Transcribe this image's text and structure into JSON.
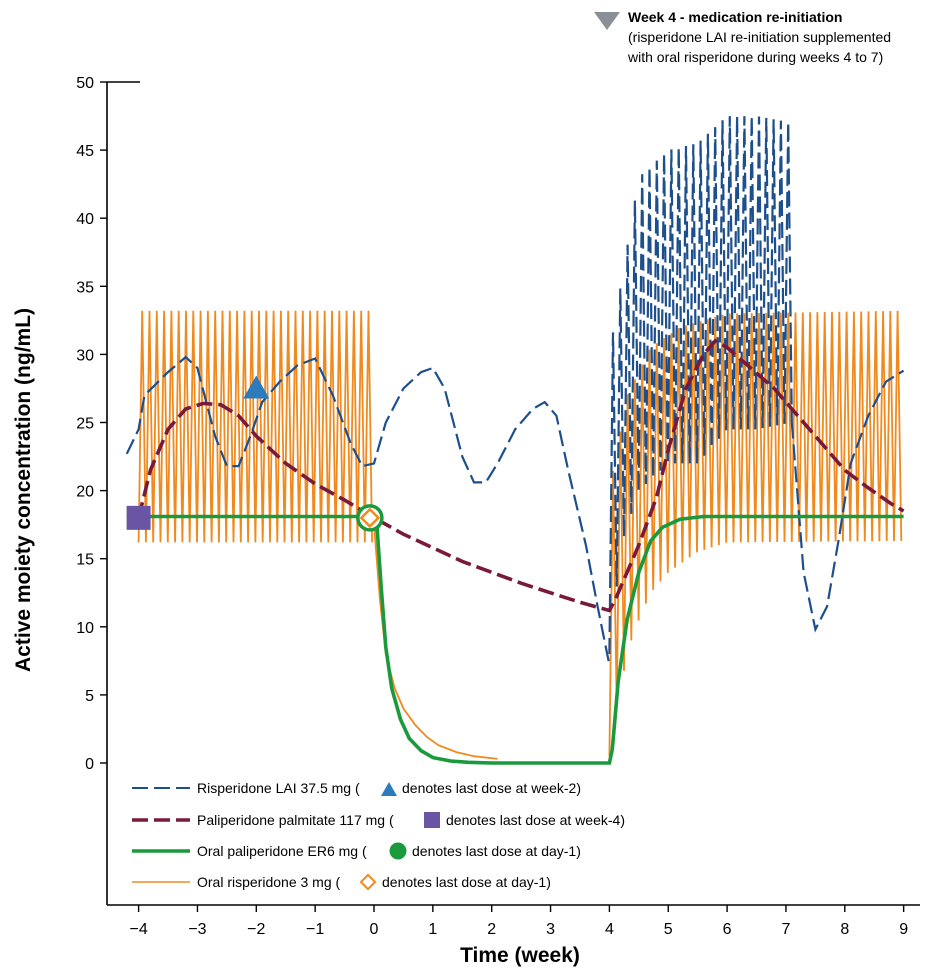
{
  "chart_data": {
    "type": "line",
    "title": "",
    "xlabel": "Time (week)",
    "ylabel": "Active moiety concentration (ng/mL)",
    "xlim": [
      -4.2,
      9.2
    ],
    "ylim": [
      0,
      50
    ],
    "x_ticks": [
      -4,
      -3,
      -2,
      -1,
      0,
      1,
      2,
      3,
      4,
      5,
      6,
      7,
      8,
      9
    ],
    "x_tick_labels": [
      "−4",
      "−3",
      "−2",
      "−1",
      "0",
      "1",
      "2",
      "3",
      "4",
      "5",
      "6",
      "7",
      "8",
      "9"
    ],
    "y_ticks": [
      0,
      5,
      10,
      15,
      20,
      25,
      30,
      35,
      40,
      45,
      50
    ],
    "y_tick_labels": [
      "0",
      "5",
      "10",
      "15",
      "20",
      "25",
      "30",
      "35",
      "40",
      "45",
      "50"
    ],
    "grid": false,
    "legend_position": "bottom-left",
    "series": [
      {
        "name": "Risperidone LAI",
        "legend_label": "Risperidone LAI 37.5 mg (",
        "marker_label": "denotes last dose at week-2)",
        "color": "#1d4f8c",
        "marker": "triangle",
        "marker_point": {
          "x": -2,
          "y": 27.5
        },
        "points": [
          [
            -4.2,
            22.7
          ],
          [
            -4.0,
            24.5
          ],
          [
            -3.9,
            27.0
          ],
          [
            -3.5,
            28.7
          ],
          [
            -3.2,
            29.8
          ],
          [
            -3.0,
            29.0
          ],
          [
            -2.7,
            24.0
          ],
          [
            -2.5,
            21.8
          ],
          [
            -2.3,
            21.8
          ],
          [
            -2.1,
            24.0
          ],
          [
            -1.9,
            26.5
          ],
          [
            -1.6,
            28.0
          ],
          [
            -1.3,
            29.2
          ],
          [
            -1.0,
            29.7
          ],
          [
            -0.7,
            27.0
          ],
          [
            -0.4,
            23.5
          ],
          [
            -0.2,
            21.8
          ],
          [
            0.0,
            22.0
          ],
          [
            0.2,
            25.0
          ],
          [
            0.5,
            27.5
          ],
          [
            0.8,
            28.7
          ],
          [
            1.0,
            29.0
          ],
          [
            1.2,
            27.5
          ],
          [
            1.5,
            22.5
          ],
          [
            1.7,
            20.6
          ],
          [
            1.9,
            20.6
          ],
          [
            2.1,
            22.0
          ],
          [
            2.4,
            24.5
          ],
          [
            2.7,
            26.0
          ],
          [
            2.9,
            26.5
          ],
          [
            3.1,
            25.5
          ],
          [
            3.3,
            21.5
          ],
          [
            3.6,
            16.0
          ],
          [
            3.8,
            11.5
          ],
          [
            4.0,
            7.2
          ]
        ],
        "oscillation": {
          "x_start": 4.0,
          "x_end": 7.1,
          "upper": [
            [
              4.0,
              30
            ],
            [
              4.5,
              43
            ],
            [
              5.0,
              45
            ],
            [
              5.5,
              45.5
            ],
            [
              6.0,
              47.5
            ],
            [
              6.5,
              47.5
            ],
            [
              7.1,
              47.0
            ]
          ],
          "lower": [
            [
              4.0,
              8
            ],
            [
              4.2,
              16
            ],
            [
              4.5,
              20
            ],
            [
              5.0,
              22
            ],
            [
              5.5,
              22
            ],
            [
              6.0,
              24.5
            ],
            [
              6.5,
              24.5
            ],
            [
              7.1,
              25
            ]
          ]
        },
        "tail": [
          [
            7.1,
            25.0
          ],
          [
            7.3,
            14.0
          ],
          [
            7.5,
            9.8
          ],
          [
            7.7,
            11.5
          ],
          [
            7.9,
            16.5
          ],
          [
            8.1,
            22.0
          ],
          [
            8.4,
            25.5
          ],
          [
            8.7,
            28.0
          ],
          [
            9.0,
            28.8
          ]
        ]
      },
      {
        "name": "Paliperidone palmitate",
        "legend_label": "Paliperidone palmitate 117 mg (",
        "marker_label": "denotes last dose at week-4)",
        "color": "#7a1a3a",
        "marker": "square",
        "marker_point": {
          "x": -4,
          "y": 18.0
        },
        "points": [
          [
            -4.0,
            18.0
          ],
          [
            -3.8,
            21.5
          ],
          [
            -3.5,
            24.5
          ],
          [
            -3.2,
            26.0
          ],
          [
            -2.9,
            26.4
          ],
          [
            -2.6,
            26.3
          ],
          [
            -2.3,
            25.5
          ],
          [
            -2.0,
            24.0
          ],
          [
            -1.5,
            22.0
          ],
          [
            -1.0,
            20.5
          ],
          [
            -0.5,
            19.3
          ],
          [
            0.0,
            18.0
          ],
          [
            0.5,
            16.8
          ],
          [
            1.0,
            15.8
          ],
          [
            1.5,
            14.8
          ],
          [
            2.0,
            14.0
          ],
          [
            2.5,
            13.2
          ],
          [
            3.0,
            12.5
          ],
          [
            3.5,
            11.8
          ],
          [
            4.0,
            11.2
          ],
          [
            4.1,
            12.0
          ],
          [
            4.5,
            16.0
          ],
          [
            4.8,
            19.5
          ],
          [
            5.0,
            23.0
          ],
          [
            5.3,
            27.5
          ],
          [
            5.6,
            30.0
          ],
          [
            5.8,
            31.0
          ],
          [
            6.0,
            30.5
          ],
          [
            6.4,
            29.0
          ],
          [
            6.8,
            27.5
          ],
          [
            7.2,
            25.5
          ],
          [
            7.6,
            23.5
          ],
          [
            8.0,
            21.5
          ],
          [
            8.4,
            20.2
          ],
          [
            8.8,
            19.0
          ],
          [
            9.0,
            18.5
          ]
        ]
      },
      {
        "name": "Oral paliperidone ER",
        "legend_label": "Oral paliperidone ER6  mg (",
        "marker_label": "denotes last dose at day-1)",
        "color": "#1a9a3c",
        "marker": "circle",
        "marker_point": {
          "x": -0.07,
          "y": 18.0
        },
        "points": [
          [
            -4.2,
            18.1
          ],
          [
            -0.05,
            18.1
          ],
          [
            0.05,
            17.5
          ],
          [
            0.12,
            13.0
          ],
          [
            0.2,
            8.5
          ],
          [
            0.3,
            5.5
          ],
          [
            0.45,
            3.2
          ],
          [
            0.6,
            1.8
          ],
          [
            0.8,
            0.9
          ],
          [
            1.0,
            0.4
          ],
          [
            1.3,
            0.15
          ],
          [
            1.6,
            0.05
          ],
          [
            2.0,
            0.0
          ],
          [
            4.0,
            0.0
          ],
          [
            4.05,
            1.0
          ],
          [
            4.15,
            6.0
          ],
          [
            4.3,
            10.5
          ],
          [
            4.5,
            14.0
          ],
          [
            4.7,
            16.3
          ],
          [
            4.9,
            17.3
          ],
          [
            5.2,
            17.9
          ],
          [
            5.6,
            18.1
          ],
          [
            9.0,
            18.1
          ]
        ]
      },
      {
        "name": "Oral risperidone",
        "legend_label": "Oral risperidone 3 mg (",
        "marker_label": "denotes last dose at day-1)",
        "color": "#f08a1e",
        "marker": "diamond",
        "marker_point": {
          "x": -0.07,
          "y": 18.0
        },
        "oscillation_1": {
          "x_start": -4.0,
          "x_end": 0.0,
          "upper": 33.2,
          "lower": 16.2
        },
        "decay": [
          [
            0.0,
            17.5
          ],
          [
            0.1,
            12.0
          ],
          [
            0.2,
            8.0
          ],
          [
            0.35,
            5.5
          ],
          [
            0.5,
            4.0
          ],
          [
            0.7,
            2.8
          ],
          [
            0.9,
            1.9
          ],
          [
            1.1,
            1.3
          ],
          [
            1.4,
            0.8
          ],
          [
            1.7,
            0.5
          ],
          [
            2.1,
            0.3
          ]
        ],
        "oscillation_2": {
          "x_start": 4.0,
          "x_end": 9.0,
          "upper": [
            [
              4.0,
              20
            ],
            [
              4.3,
              27
            ],
            [
              4.7,
              30.5
            ],
            [
              5.2,
              32
            ],
            [
              6.0,
              33
            ],
            [
              9.0,
              33.2
            ]
          ],
          "lower": [
            [
              4.0,
              0.5
            ],
            [
              4.15,
              5
            ],
            [
              4.4,
              9.5
            ],
            [
              4.7,
              12.5
            ],
            [
              5.0,
              14
            ],
            [
              5.5,
              15.5
            ],
            [
              6.0,
              16.2
            ],
            [
              9.0,
              16.3
            ]
          ]
        }
      }
    ]
  },
  "annotation": {
    "title": "Week 4 - medication re-initiation",
    "line1": "(risperidone LAI re-initiation supplemented",
    "line2": "with oral risperidone during weeks 4 to 7)",
    "marker_color": "#8a9098"
  }
}
